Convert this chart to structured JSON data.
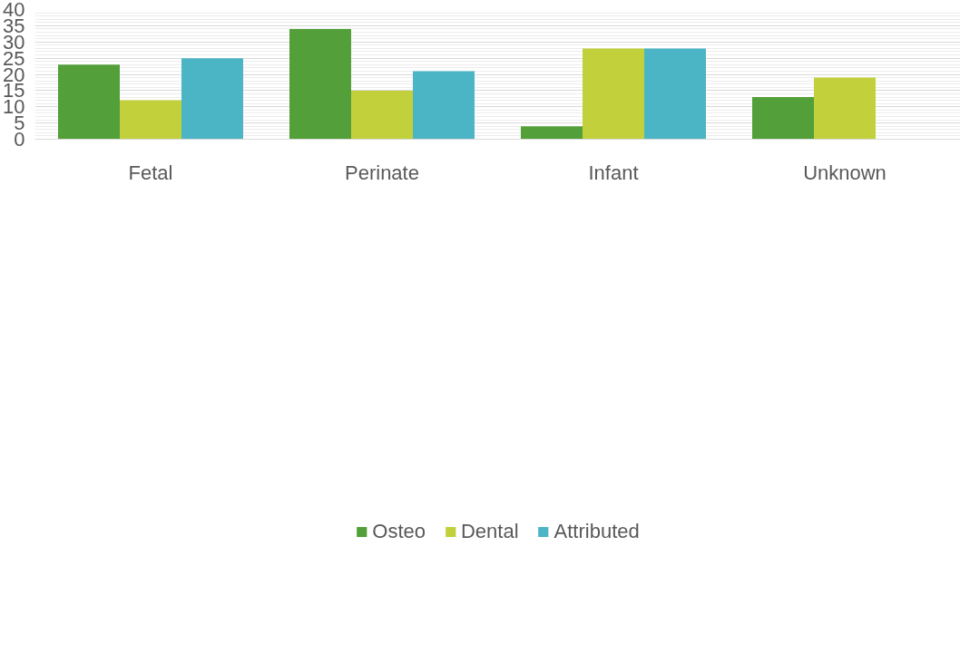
{
  "chart_data": {
    "type": "bar",
    "categories": [
      "Fetal",
      "Perinate",
      "Infant",
      "Unknown"
    ],
    "series": [
      {
        "name": "Osteo",
        "color": "#539f39",
        "values": [
          23,
          34,
          4,
          13
        ]
      },
      {
        "name": "Dental",
        "color": "#c2d03b",
        "values": [
          12,
          15,
          28,
          19
        ]
      },
      {
        "name": "Attributed",
        "color": "#4bb5c5",
        "values": [
          25,
          21,
          28,
          null
        ]
      }
    ],
    "ylim": [
      0,
      40
    ],
    "yticks": [
      0,
      {
        "value": 1,
        "label": null
      },
      {
        "value": 2,
        "label": null
      },
      {
        "value": 3,
        "label": null
      },
      {
        "value": 4,
        "label": null
      },
      5,
      {
        "value": 6,
        "label": null
      },
      {
        "value": 7,
        "label": null
      },
      {
        "value": 8,
        "label": null
      },
      {
        "value": 9,
        "label": null
      },
      10,
      {
        "value": 11,
        "label": null
      },
      {
        "value": 12,
        "label": null
      },
      {
        "value": 13,
        "label": null
      },
      {
        "value": 14,
        "label": null
      },
      15,
      {
        "value": 16,
        "label": null
      },
      {
        "value": 17,
        "label": null
      },
      {
        "value": 18,
        "label": null
      },
      {
        "value": 19,
        "label": null
      },
      20,
      {
        "value": 21,
        "label": null
      },
      {
        "value": 22,
        "label": null
      },
      {
        "value": 23,
        "label": null
      },
      {
        "value": 24,
        "label": null
      },
      25,
      {
        "value": 26,
        "label": null
      },
      {
        "value": 27,
        "label": null
      },
      {
        "value": 28,
        "label": null
      },
      {
        "value": 29,
        "label": null
      },
      30,
      {
        "value": 31,
        "label": null
      },
      {
        "value": 32,
        "label": null
      },
      {
        "value": 33,
        "label": null
      },
      {
        "value": 34,
        "label": null
      },
      35,
      {
        "value": 36,
        "label": null
      },
      {
        "value": 37,
        "label": null
      },
      {
        "value": 38,
        "label": null
      },
      {
        "value": 39,
        "label": null
      },
      40
    ],
    "grid": "y",
    "legend": "bottom"
  }
}
